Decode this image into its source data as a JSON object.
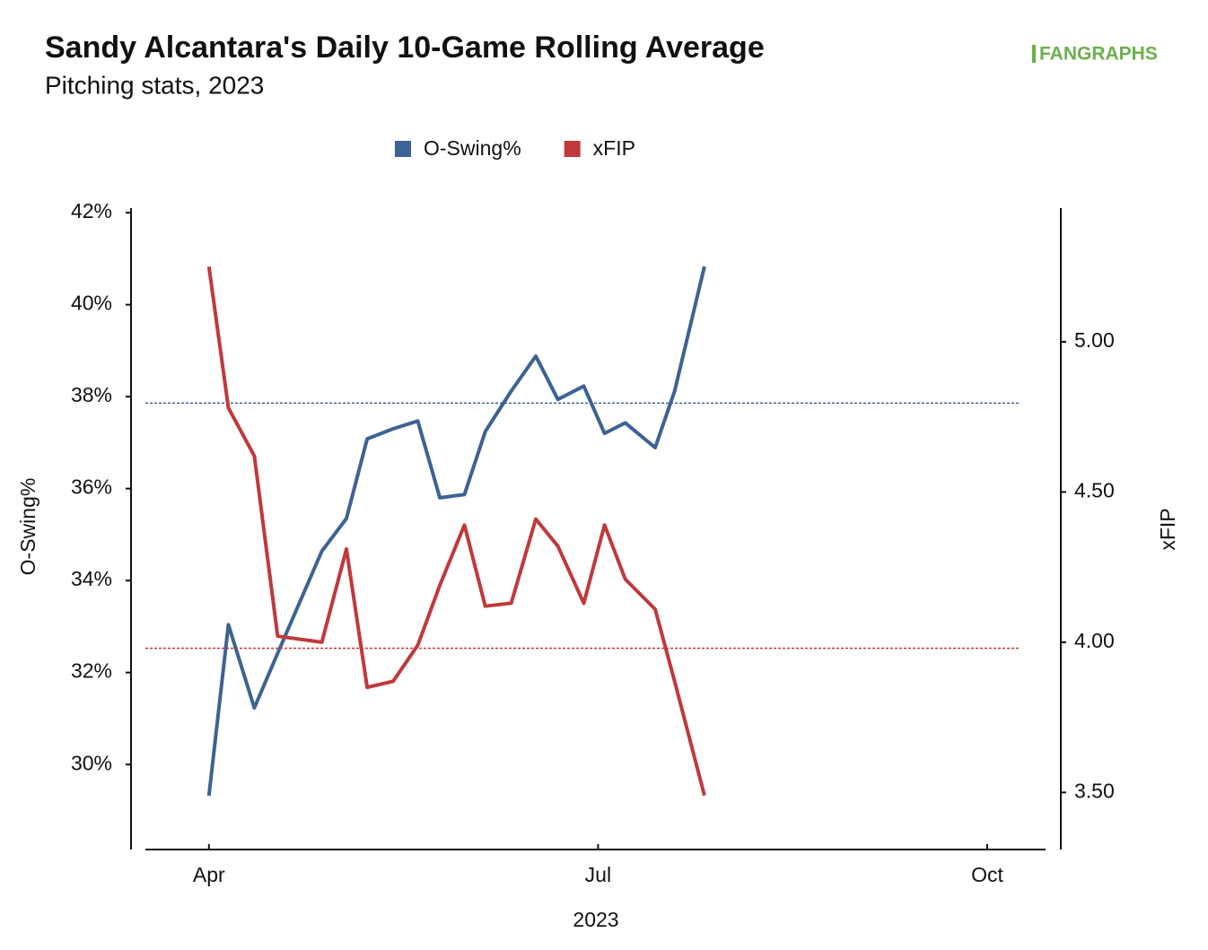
{
  "chart_data": {
    "type": "line",
    "title": "Sandy Alcantara's Daily 10-Game Rolling Average",
    "subtitle": "Pitching stats, 2023",
    "logo": "FANGRAPHS",
    "x_label": "2023",
    "y_label": "O-Swing%",
    "y2_label": "xFIP",
    "x": [
      4.0,
      4.15,
      4.35,
      4.53,
      4.87,
      5.06,
      5.22,
      5.42,
      5.61,
      5.78,
      5.97,
      6.13,
      6.33,
      6.52,
      6.69,
      6.89,
      7.05,
      7.21,
      7.44,
      7.59,
      7.82
    ],
    "xlim": [
      3.51,
      10.45
    ],
    "xticks": [
      {
        "value": 4,
        "label": "Apr"
      },
      {
        "value": 7,
        "label": "Jul"
      },
      {
        "value": 10,
        "label": "Oct"
      }
    ],
    "ylim": [
      28.15,
      42.1
    ],
    "yticks": [
      {
        "value": 30,
        "label": "30%"
      },
      {
        "value": 32,
        "label": "32%"
      },
      {
        "value": 34,
        "label": "34%"
      },
      {
        "value": 36,
        "label": "36%"
      },
      {
        "value": 38,
        "label": "38%"
      },
      {
        "value": 40,
        "label": "40%"
      },
      {
        "value": 42,
        "label": "42%"
      }
    ],
    "y2lim": [
      3.31,
      5.445
    ],
    "y2ticks": [
      {
        "value": 3.5,
        "label": "3.50"
      },
      {
        "value": 4,
        "label": "4.00"
      },
      {
        "value": 4.5,
        "label": "4.50"
      },
      {
        "value": 5,
        "label": "5.00"
      }
    ],
    "legend": "top",
    "series": [
      {
        "name": "O-Swing%",
        "color": "#3d6294",
        "axis": "y",
        "average": 37.86,
        "values": [
          29.32,
          33.04,
          31.23,
          32.42,
          34.64,
          35.35,
          37.08,
          37.3,
          37.47,
          35.8,
          35.87,
          37.24,
          38.12,
          38.88,
          37.94,
          38.23,
          37.2,
          37.43,
          36.89,
          38.12,
          40.83
        ]
      },
      {
        "name": "xFIP",
        "color": "#c0393b",
        "axis": "y2",
        "average": 3.98,
        "values": [
          5.25,
          4.78,
          4.62,
          4.02,
          4.0,
          4.31,
          3.85,
          3.87,
          3.99,
          4.19,
          4.39,
          4.12,
          4.13,
          4.41,
          4.32,
          4.13,
          4.39,
          4.21,
          4.11,
          3.87,
          3.49
        ]
      }
    ]
  }
}
